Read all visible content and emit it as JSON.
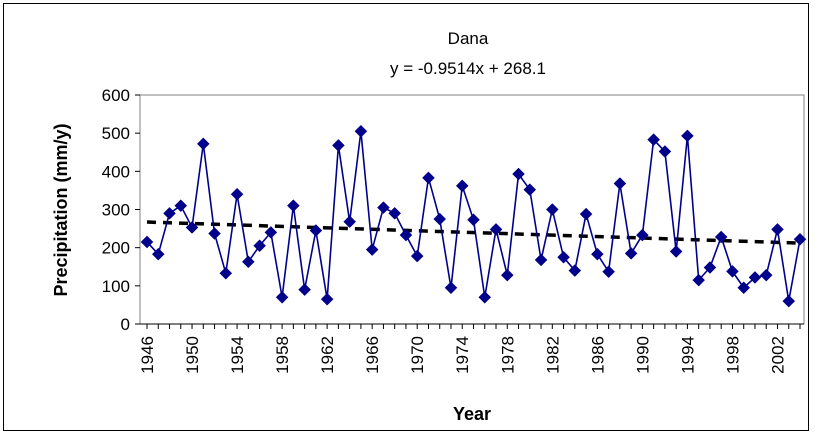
{
  "chart_data": {
    "type": "line",
    "title": "Dana",
    "subtitle": "y = -0.9514x + 268.1",
    "xlabel": "Year",
    "ylabel": "Precipitation (mm/y)",
    "ylim": [
      0,
      600
    ],
    "yticks": [
      0,
      100,
      200,
      300,
      400,
      500,
      600
    ],
    "xticks": [
      1946,
      1950,
      1954,
      1958,
      1962,
      1966,
      1970,
      1974,
      1978,
      1982,
      1986,
      1990,
      1994,
      1998,
      2002
    ],
    "xlim": [
      1946,
      2004
    ],
    "grid": false,
    "legend": "none",
    "series": [
      {
        "color": "#00008B",
        "marker": "diamond",
        "x": [
          1946,
          1947,
          1948,
          1949,
          1950,
          1951,
          1952,
          1953,
          1954,
          1955,
          1956,
          1957,
          1958,
          1959,
          1960,
          1961,
          1962,
          1963,
          1964,
          1965,
          1966,
          1967,
          1968,
          1969,
          1970,
          1971,
          1972,
          1973,
          1974,
          1975,
          1976,
          1977,
          1978,
          1979,
          1980,
          1981,
          1982,
          1983,
          1984,
          1985,
          1986,
          1987,
          1988,
          1989,
          1990,
          1991,
          1992,
          1993,
          1994,
          1995,
          1996,
          1997,
          1998,
          1999,
          2000,
          2001,
          2002,
          2003,
          2004
        ],
        "values": [
          215,
          183,
          290,
          310,
          253,
          472,
          237,
          133,
          340,
          163,
          205,
          240,
          70,
          310,
          90,
          245,
          65,
          468,
          268,
          505,
          195,
          305,
          290,
          233,
          178,
          383,
          275,
          95,
          362,
          273,
          70,
          248,
          128,
          393,
          352,
          168,
          300,
          175,
          140,
          288,
          183,
          137,
          368,
          185,
          233,
          483,
          452,
          190,
          493,
          115,
          148,
          228,
          138,
          95,
          122,
          128,
          248,
          60,
          222
        ]
      },
      {
        "name": "Linear trend",
        "color": "#000000",
        "style": "dashed",
        "type": "trendline",
        "slope": -0.9514,
        "intercept": 268.1
      }
    ]
  }
}
